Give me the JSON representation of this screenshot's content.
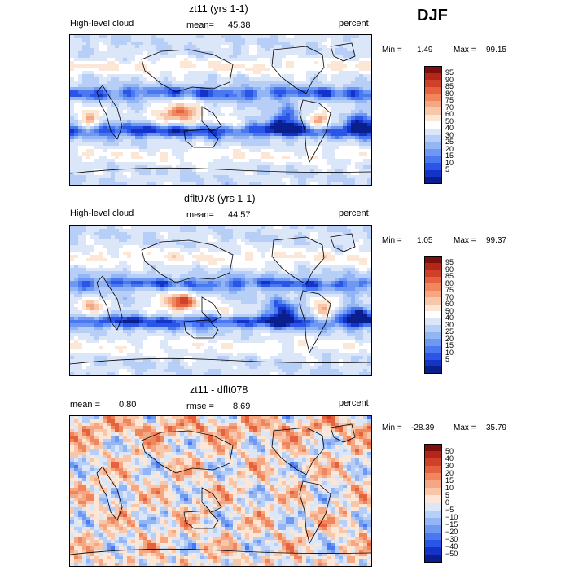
{
  "season": "DJF",
  "colors": {
    "abs": [
      "#0a1e8c",
      "#1433c8",
      "#2a55e6",
      "#4a78ef",
      "#6f98f2",
      "#93b5f4",
      "#b7cef6",
      "#dbe6f8",
      "#ffffff",
      "#fce6d6",
      "#f8c6a9",
      "#f5a783",
      "#f0865e",
      "#e4623e",
      "#cf4128",
      "#b4261a",
      "#7d0f0f"
    ],
    "diff": [
      "#0a1e8c",
      "#1433c8",
      "#2a55e6",
      "#4a78ef",
      "#6f98f2",
      "#93b5f4",
      "#b7cef6",
      "#dbe6f8",
      "#fce6d6",
      "#f8c6a9",
      "#f5a783",
      "#f0865e",
      "#e4623e",
      "#cf4128",
      "#b4261a",
      "#7d0f0f"
    ]
  },
  "chart_data": [
    {
      "type": "heatmap",
      "title": "zt11 (yrs 1-1)",
      "left_label": "High-level cloud",
      "stat_label": "mean=",
      "stat_value": "45.38",
      "units": "percent",
      "min_label": "Min =",
      "min_value": "1.49",
      "max_label": "Max =",
      "max_value": "99.15",
      "levels": [
        "95",
        "90",
        "85",
        "80",
        "75",
        "70",
        "60",
        "50",
        "40",
        "30",
        "25",
        "20",
        "15",
        "10",
        "5"
      ]
    },
    {
      "type": "heatmap",
      "title": "dflt078 (yrs 1-1)",
      "left_label": "High-level cloud",
      "stat_label": "mean=",
      "stat_value": "44.57",
      "units": "percent",
      "min_label": "Min =",
      "min_value": "1.05",
      "max_label": "Max =",
      "max_value": "99.37",
      "levels": [
        "95",
        "90",
        "85",
        "80",
        "75",
        "70",
        "60",
        "50",
        "40",
        "30",
        "25",
        "20",
        "15",
        "10",
        "5"
      ]
    },
    {
      "type": "heatmap",
      "title": "zt11 - dflt078",
      "left_label": "mean =",
      "left_value": "0.80",
      "stat_label": "rmse =",
      "stat_value": "8.69",
      "units": "percent",
      "min_label": "Min =",
      "min_value": "-28.39",
      "max_label": "Max =",
      "max_value": "35.79",
      "levels": [
        "50",
        "40",
        "30",
        "20",
        "15",
        "10",
        "5",
        "0",
        "−5",
        "−10",
        "−15",
        "−20",
        "−30",
        "−40",
        "−50"
      ]
    }
  ]
}
